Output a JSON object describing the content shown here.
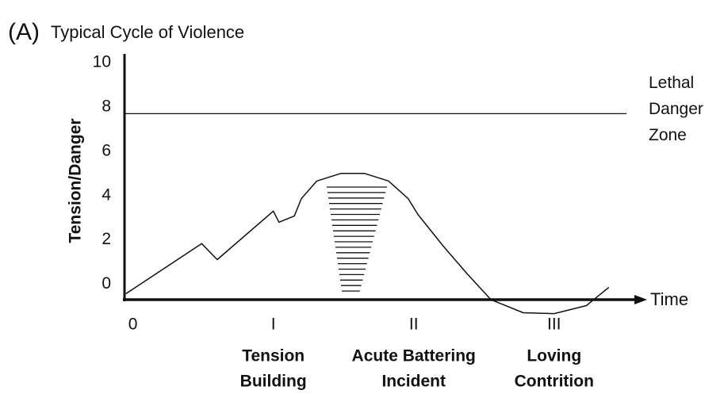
{
  "chart_data": {
    "type": "line",
    "panel_label": "(A)",
    "title": "Typical Cycle of Violence",
    "y_label": "Tension/Danger",
    "x_label": "Time",
    "ylim": [
      -0.7,
      10.4
    ],
    "yticks": [
      0,
      2,
      4,
      6,
      8,
      10
    ],
    "xlim": [
      -0.06,
      3.6
    ],
    "xticks": [
      0,
      {
        "value": 1,
        "label": "I"
      },
      {
        "value": 2,
        "label": "II"
      },
      {
        "value": 3,
        "label": "III"
      }
    ],
    "phases": [
      [
        "Tension",
        "Building"
      ],
      [
        "Acute Battering",
        "Incident"
      ],
      [
        "Loving",
        "Contrition"
      ]
    ],
    "threshold": {
      "value": 7.7,
      "label": [
        "Lethal",
        "Danger",
        "Zone"
      ]
    },
    "series": [
      {
        "color": "#111111",
        "x": [
          -0.05,
          0.49,
          0.6,
          1.0,
          1.04,
          1.15,
          1.2,
          1.31,
          1.48,
          1.65,
          1.82,
          1.96,
          2.03,
          2.21,
          2.38,
          2.55,
          2.78,
          3.0,
          3.23,
          3.39
        ],
        "values": [
          -0.43,
          1.83,
          1.11,
          3.3,
          2.8,
          3.08,
          3.87,
          4.66,
          5.0,
          5.0,
          4.66,
          3.87,
          3.15,
          1.72,
          0.47,
          -0.7,
          -1.29,
          -1.33,
          -0.97,
          -0.14
        ]
      }
    ]
  }
}
